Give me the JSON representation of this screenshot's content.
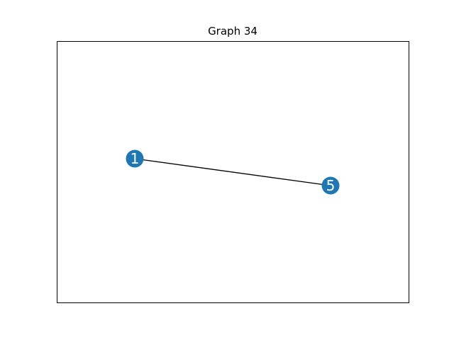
{
  "title": "Graph 34",
  "colors": {
    "node_fill": "#1f77b4",
    "node_label": "#ffffff",
    "edge": "#000000",
    "frame": "#000000",
    "background": "#ffffff"
  },
  "graph": {
    "nodes": [
      {
        "id": "1",
        "label": "1"
      },
      {
        "id": "5",
        "label": "5"
      }
    ],
    "edges": [
      {
        "source": "1",
        "target": "5"
      }
    ]
  }
}
